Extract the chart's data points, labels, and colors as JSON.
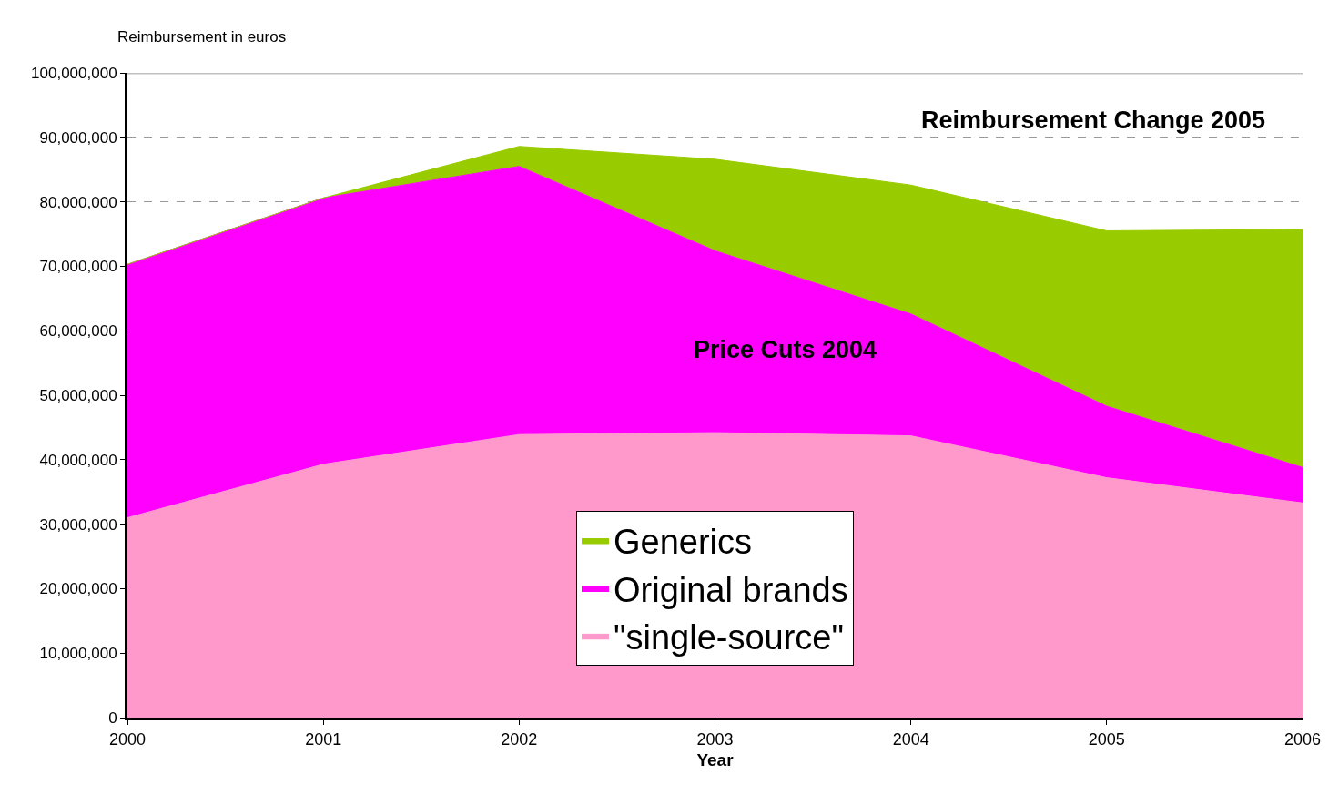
{
  "chart_data": {
    "type": "area",
    "stacked": true,
    "ylabel": "Reimbursement in euros",
    "xlabel": "Year",
    "categories": [
      "2000",
      "2001",
      "2002",
      "2003",
      "2004",
      "2005",
      "2006"
    ],
    "series": [
      {
        "name": "\"single-source\"",
        "color": "#ff99cc",
        "values": [
          31000000,
          39300000,
          43900000,
          44200000,
          43700000,
          37200000,
          33300000
        ]
      },
      {
        "name": "Original brands",
        "color": "#ff00ff",
        "values": [
          39300000,
          41300000,
          41600000,
          28200000,
          18900000,
          11100000,
          5500000
        ]
      },
      {
        "name": "Generics",
        "color": "#99cc00",
        "values": [
          0,
          0,
          3100000,
          14200000,
          20000000,
          27200000,
          36900000
        ]
      }
    ],
    "ylim": [
      0,
      100000000
    ],
    "yticks": [
      {
        "value": 0,
        "label": "0"
      },
      {
        "value": 10000000,
        "label": "10,000,000"
      },
      {
        "value": 20000000,
        "label": "20,000,000"
      },
      {
        "value": 30000000,
        "label": "30,000,000"
      },
      {
        "value": 40000000,
        "label": "40,000,000"
      },
      {
        "value": 50000000,
        "label": "50,000,000"
      },
      {
        "value": 60000000,
        "label": "60,000,000"
      },
      {
        "value": 70000000,
        "label": "70,000,000"
      },
      {
        "value": 80000000,
        "label": "80,000,000"
      },
      {
        "value": 90000000,
        "label": "90,000,000"
      },
      {
        "value": 100000000,
        "label": "100,000,000"
      }
    ],
    "grid": "y",
    "legend": "bottom",
    "annotations": [
      "Reimbursement Change 2005",
      "Price Cuts 2004"
    ]
  }
}
